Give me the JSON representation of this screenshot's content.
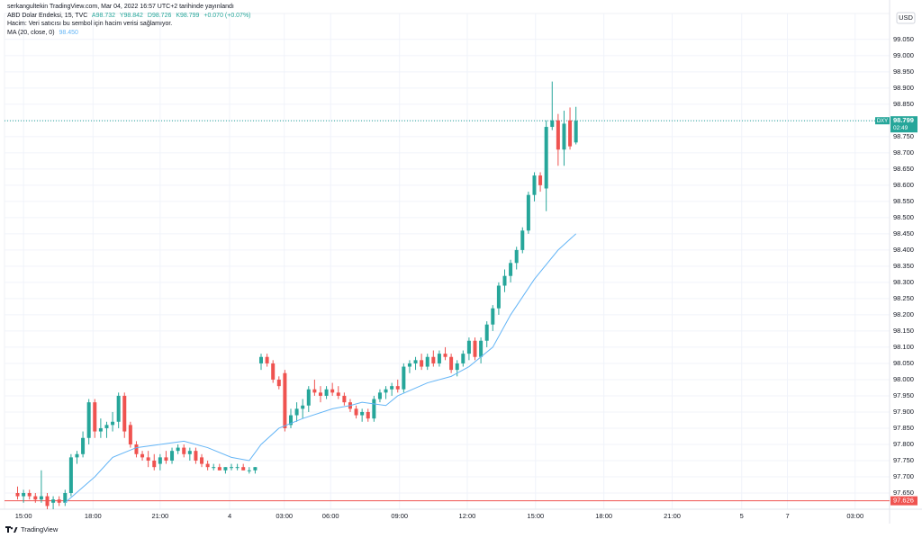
{
  "chart_data": {
    "type": "candlestick",
    "published": "serkangultekin TradingView.com, Mar 04, 2022 16:57 UTC+2 tarihinde yayınlandı",
    "legend": {
      "symbol": "ABD Dolar Endeksi, 15, TVC",
      "open": "A98.732",
      "high": "Y98.842",
      "low": "D98.726",
      "close": "K98.799",
      "change": "+0.070 (+0.07%)",
      "volume": "Hacim: Veri satıcısı bu sembol için hacim verisi sağlamıyor."
    },
    "currency": "USD",
    "footer": "TradingView",
    "up_color": "#26a69a",
    "down_color": "#ef5350",
    "x": [
      -1,
      0,
      1,
      2,
      3,
      4,
      5,
      6,
      7,
      8,
      9,
      10,
      11,
      12,
      13,
      14,
      15,
      16,
      17,
      18,
      19,
      20,
      21,
      22,
      23,
      24,
      25,
      26,
      27,
      28,
      29,
      30,
      31,
      32,
      33,
      34,
      35,
      36,
      37,
      38,
      39,
      40,
      41,
      42,
      43,
      44,
      45,
      46,
      47,
      48,
      49,
      50,
      51,
      52,
      53,
      54,
      55,
      56,
      57,
      58,
      59,
      60,
      61,
      62,
      63,
      64,
      65,
      66,
      67,
      68,
      69,
      70,
      71,
      72,
      73,
      74,
      75,
      76,
      77,
      78,
      79,
      80,
      81,
      82,
      83,
      84,
      85,
      86,
      87,
      88,
      89,
      90,
      91,
      92,
      93
    ],
    "ohlc": [
      [
        97.65,
        97.67,
        97.63,
        97.64
      ],
      [
        97.64,
        97.66,
        97.62,
        97.65
      ],
      [
        97.65,
        97.66,
        97.63,
        97.64
      ],
      [
        97.64,
        97.65,
        97.62,
        97.63
      ],
      [
        97.63,
        97.72,
        97.62,
        97.64
      ],
      [
        97.64,
        97.65,
        97.6,
        97.61
      ],
      [
        97.62,
        97.64,
        97.6,
        97.63
      ],
      [
        97.63,
        97.64,
        97.61,
        97.62
      ],
      [
        97.62,
        97.66,
        97.61,
        97.65
      ],
      [
        97.65,
        97.77,
        97.64,
        97.76
      ],
      [
        97.76,
        97.78,
        97.74,
        97.77
      ],
      [
        97.77,
        97.84,
        97.76,
        97.82
      ],
      [
        97.82,
        97.94,
        97.8,
        97.93
      ],
      [
        97.93,
        97.94,
        97.82,
        97.84
      ],
      [
        97.84,
        97.88,
        97.82,
        97.85
      ],
      [
        97.85,
        97.87,
        97.82,
        97.86
      ],
      [
        97.86,
        97.9,
        97.84,
        97.87
      ],
      [
        97.87,
        97.96,
        97.85,
        97.95
      ],
      [
        97.95,
        97.96,
        97.82,
        97.84
      ],
      [
        97.86,
        97.87,
        97.79,
        97.8
      ],
      [
        97.8,
        97.81,
        97.76,
        97.77
      ],
      [
        97.77,
        97.78,
        97.75,
        97.76
      ],
      [
        97.76,
        97.78,
        97.73,
        97.75
      ],
      [
        97.75,
        97.77,
        97.72,
        97.73
      ],
      [
        97.74,
        97.77,
        97.72,
        97.76
      ],
      [
        97.76,
        97.78,
        97.74,
        97.75
      ],
      [
        97.75,
        97.79,
        97.74,
        97.78
      ],
      [
        97.78,
        97.8,
        97.77,
        97.79
      ],
      [
        97.79,
        97.8,
        97.76,
        97.77
      ],
      [
        97.77,
        97.79,
        97.75,
        97.78
      ],
      [
        97.78,
        97.79,
        97.74,
        97.75
      ],
      [
        97.76,
        97.77,
        97.73,
        97.74
      ],
      [
        97.74,
        97.75,
        97.72,
        97.73
      ],
      [
        97.73,
        97.74,
        97.72,
        97.73
      ],
      [
        97.73,
        97.74,
        97.72,
        97.72
      ],
      [
        97.72,
        97.73,
        97.71,
        97.73
      ],
      [
        97.73,
        97.74,
        97.72,
        97.73
      ],
      [
        97.73,
        97.74,
        97.72,
        97.73
      ],
      [
        97.73,
        97.74,
        97.72,
        97.72
      ],
      [
        97.72,
        97.73,
        97.71,
        97.72
      ],
      [
        97.72,
        97.73,
        97.71,
        97.73
      ],
      [
        98.05,
        98.08,
        98.03,
        98.07
      ],
      [
        98.07,
        98.08,
        98.04,
        98.05
      ],
      [
        98.05,
        98.06,
        97.99,
        98.0
      ],
      [
        98.0,
        98.01,
        97.97,
        97.98
      ],
      [
        98.02,
        98.03,
        97.84,
        97.85
      ],
      [
        97.86,
        97.91,
        97.85,
        97.89
      ],
      [
        97.89,
        97.93,
        97.87,
        97.91
      ],
      [
        97.91,
        97.94,
        97.88,
        97.92
      ],
      [
        97.92,
        97.98,
        97.9,
        97.97
      ],
      [
        97.97,
        98.0,
        97.95,
        97.96
      ],
      [
        97.96,
        97.98,
        97.93,
        97.95
      ],
      [
        97.95,
        97.98,
        97.94,
        97.97
      ],
      [
        97.97,
        97.99,
        97.95,
        97.96
      ],
      [
        97.96,
        97.98,
        97.94,
        97.95
      ],
      [
        97.95,
        97.96,
        97.92,
        97.93
      ],
      [
        97.93,
        97.94,
        97.9,
        97.91
      ],
      [
        97.91,
        97.92,
        97.88,
        97.89
      ],
      [
        97.89,
        97.91,
        97.87,
        97.9
      ],
      [
        97.9,
        97.91,
        97.87,
        97.88
      ],
      [
        97.88,
        97.95,
        97.87,
        97.94
      ],
      [
        97.94,
        97.97,
        97.93,
        97.96
      ],
      [
        97.96,
        97.98,
        97.94,
        97.97
      ],
      [
        97.97,
        97.99,
        97.95,
        97.98
      ],
      [
        97.98,
        98.0,
        97.96,
        97.97
      ],
      [
        97.97,
        98.05,
        97.96,
        98.04
      ],
      [
        98.04,
        98.06,
        98.02,
        98.05
      ],
      [
        98.05,
        98.07,
        98.03,
        98.06
      ],
      [
        98.06,
        98.08,
        98.03,
        98.04
      ],
      [
        98.04,
        98.08,
        98.03,
        98.07
      ],
      [
        98.07,
        98.09,
        98.04,
        98.05
      ],
      [
        98.05,
        98.09,
        98.04,
        98.08
      ],
      [
        98.08,
        98.1,
        98.06,
        98.07
      ],
      [
        98.07,
        98.08,
        98.02,
        98.03
      ],
      [
        98.03,
        98.06,
        98.01,
        98.05
      ],
      [
        98.05,
        98.09,
        98.04,
        98.08
      ],
      [
        98.08,
        98.13,
        98.06,
        98.12
      ],
      [
        98.12,
        98.13,
        98.06,
        98.07
      ],
      [
        98.07,
        98.13,
        98.05,
        98.12
      ],
      [
        98.12,
        98.18,
        98.1,
        98.17
      ],
      [
        98.17,
        98.23,
        98.15,
        98.22
      ],
      [
        98.22,
        98.3,
        98.2,
        98.29
      ],
      [
        98.29,
        98.34,
        98.27,
        98.32
      ],
      [
        98.32,
        98.37,
        98.3,
        98.36
      ],
      [
        98.36,
        98.41,
        98.34,
        98.4
      ],
      [
        98.4,
        98.47,
        98.39,
        98.46
      ],
      [
        98.46,
        98.58,
        98.45,
        98.57
      ],
      [
        98.57,
        98.64,
        98.55,
        98.63
      ],
      [
        98.63,
        98.64,
        98.58,
        98.6
      ],
      [
        98.59,
        98.8,
        98.52,
        98.78
      ],
      [
        98.78,
        98.92,
        98.77,
        98.8
      ],
      [
        98.8,
        98.82,
        98.66,
        98.71
      ],
      [
        98.71,
        98.83,
        98.66,
        98.79
      ],
      [
        98.8,
        98.84,
        98.71,
        98.72
      ],
      [
        98.732,
        98.842,
        98.726,
        98.799
      ]
    ],
    "ma": {
      "name": "MA (20, close, 0)",
      "label": "98.450",
      "color": "#64b5f6",
      "x": [
        7,
        12,
        15,
        19,
        23,
        27,
        31,
        35,
        38,
        40,
        43,
        47,
        52,
        55,
        57,
        61,
        63,
        68,
        72,
        75,
        79,
        82,
        86,
        90,
        93
      ],
      "values": [
        97.62,
        97.7,
        97.76,
        97.79,
        97.8,
        97.81,
        97.79,
        97.76,
        97.75,
        97.8,
        97.85,
        97.88,
        97.91,
        97.92,
        97.93,
        97.92,
        97.95,
        97.99,
        98.01,
        98.04,
        98.1,
        98.2,
        98.31,
        98.4,
        98.45
      ]
    },
    "price_line": {
      "value": 98.799,
      "label": "98.799",
      "symbol": "DXY",
      "countdown": "02:49",
      "color": "#26a69a"
    },
    "low_line": {
      "value": 97.626,
      "label": "97.626",
      "color": "#ef5350"
    },
    "xlim": [
      -3.2,
      145.8
    ],
    "xticks": [
      {
        "value": 0,
        "label": "15:00"
      },
      {
        "value": 11.7,
        "label": "18:00"
      },
      {
        "value": 23,
        "label": "21:00"
      },
      {
        "value": 34.7,
        "label": "4"
      },
      {
        "value": 43.9,
        "label": "03:00"
      },
      {
        "value": 51.7,
        "label": "06:00"
      },
      {
        "value": 63.3,
        "label": "09:00"
      },
      {
        "value": 74.7,
        "label": "12:00"
      },
      {
        "value": 86.2,
        "label": "15:00"
      },
      {
        "value": 97.7,
        "label": "18:00"
      },
      {
        "value": 109.2,
        "label": "21:00"
      },
      {
        "value": 120.9,
        "label": "5"
      },
      {
        "value": 128.6,
        "label": "7"
      },
      {
        "value": 140,
        "label": "03:00"
      }
    ],
    "ylim": [
      97.6,
      99.13
    ],
    "yticks": [
      {
        "value": 97.65,
        "label": "97.650"
      },
      {
        "value": 97.7,
        "label": "97.700"
      },
      {
        "value": 97.75,
        "label": "97.750"
      },
      {
        "value": 97.8,
        "label": "97.800"
      },
      {
        "value": 97.85,
        "label": "97.850"
      },
      {
        "value": 97.9,
        "label": "97.900"
      },
      {
        "value": 97.95,
        "label": "97.950"
      },
      {
        "value": 98.0,
        "label": "98.000"
      },
      {
        "value": 98.05,
        "label": "98.050"
      },
      {
        "value": 98.1,
        "label": "98.100"
      },
      {
        "value": 98.15,
        "label": "98.150"
      },
      {
        "value": 98.2,
        "label": "98.200"
      },
      {
        "value": 98.25,
        "label": "98.250"
      },
      {
        "value": 98.3,
        "label": "98.300"
      },
      {
        "value": 98.35,
        "label": "98.350"
      },
      {
        "value": 98.4,
        "label": "98.400"
      },
      {
        "value": 98.45,
        "label": "98.450"
      },
      {
        "value": 98.5,
        "label": "98.500"
      },
      {
        "value": 98.55,
        "label": "98.550"
      },
      {
        "value": 98.6,
        "label": "98.600"
      },
      {
        "value": 98.65,
        "label": "98.650"
      },
      {
        "value": 98.7,
        "label": "98.700"
      },
      {
        "value": 98.75,
        "label": "98.750"
      },
      {
        "value": 98.8,
        "label": "98.800"
      },
      {
        "value": 98.85,
        "label": "98.850"
      },
      {
        "value": 98.9,
        "label": "98.900"
      },
      {
        "value": 98.95,
        "label": "98.950"
      },
      {
        "value": 99.0,
        "label": "99.000"
      },
      {
        "value": 99.05,
        "label": "99.050"
      }
    ],
    "grid": true
  }
}
